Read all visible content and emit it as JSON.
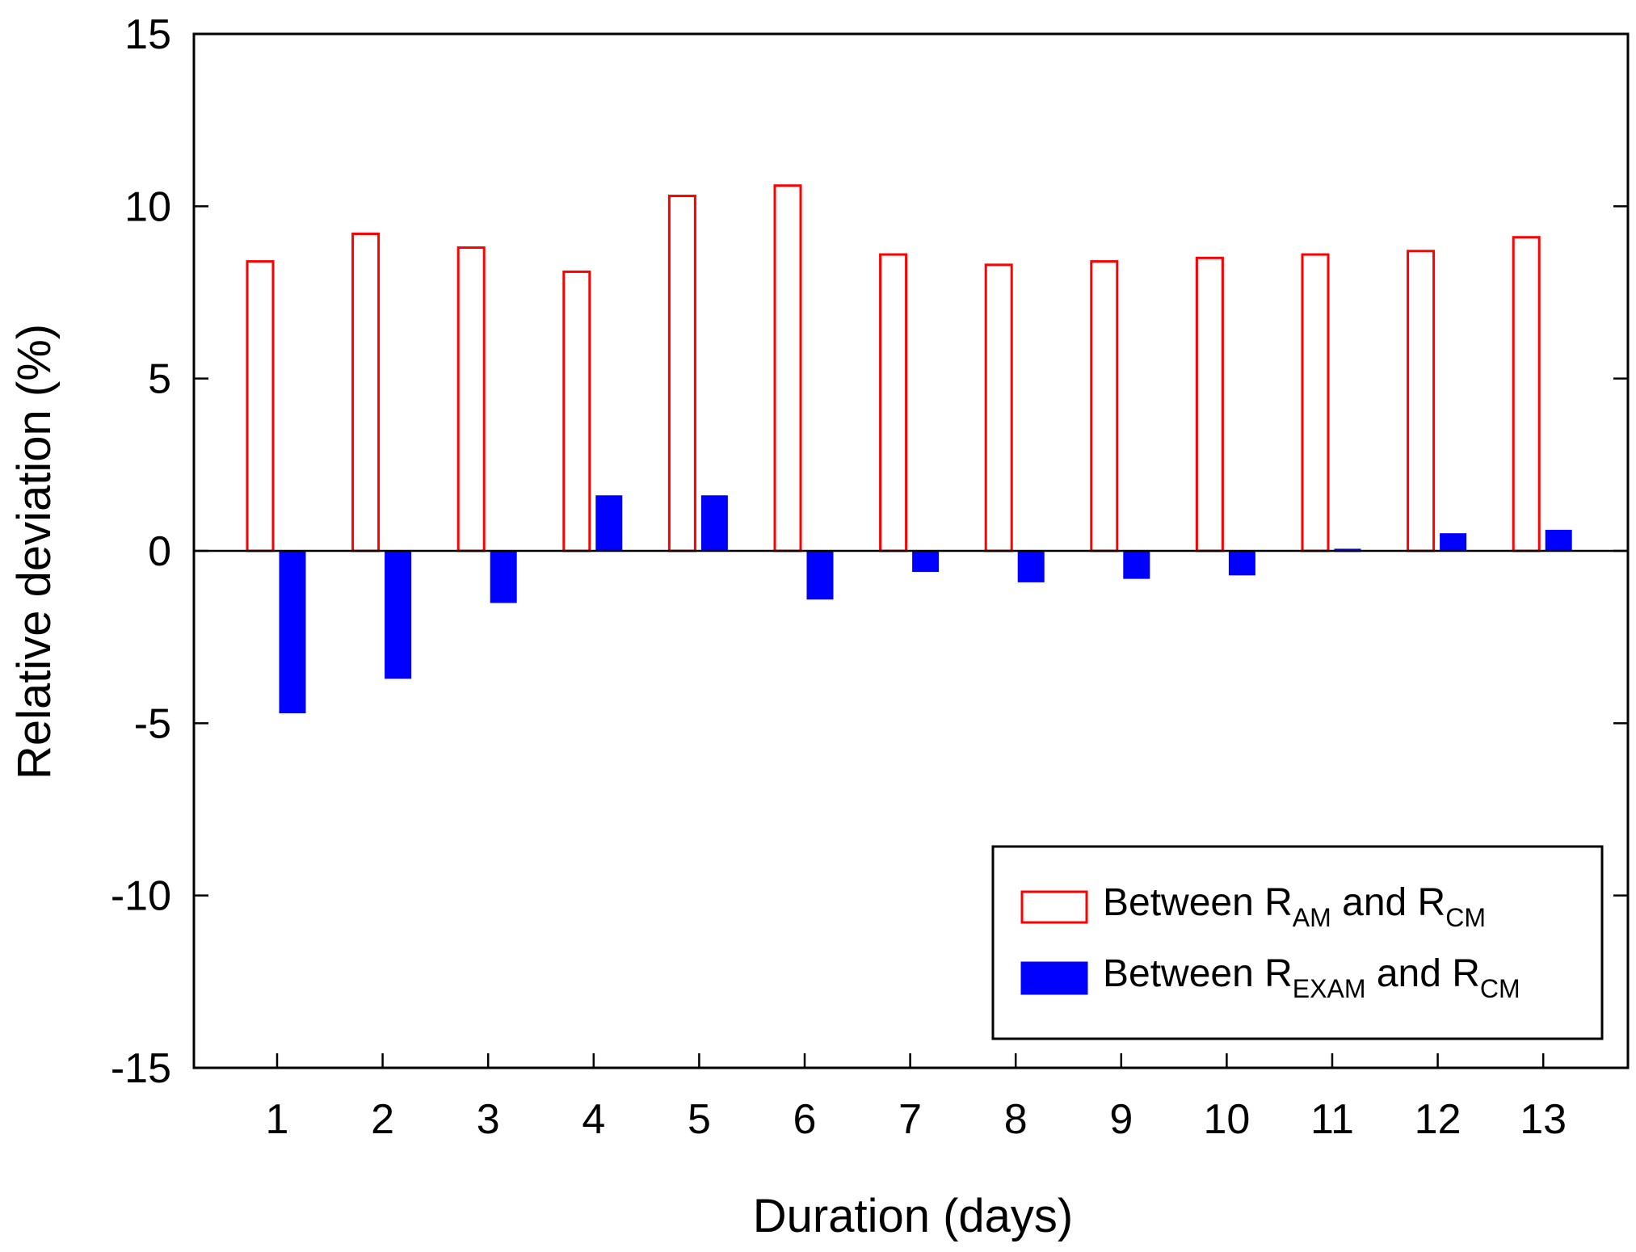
{
  "chart_data": {
    "type": "bar",
    "title": "",
    "xlabel": "Duration (days)",
    "ylabel": "Relative deviation (%)",
    "ylim": [
      -15,
      15
    ],
    "yticks": [
      -15,
      -10,
      -5,
      0,
      5,
      10,
      15
    ],
    "categories": [
      "1",
      "2",
      "3",
      "4",
      "5",
      "6",
      "7",
      "8",
      "9",
      "10",
      "11",
      "12",
      "13"
    ],
    "series": [
      {
        "name": "Between R_AM and R_CM",
        "style": "hollow",
        "color": "#ff0000",
        "values": [
          8.4,
          9.2,
          8.8,
          8.1,
          10.3,
          10.6,
          8.6,
          8.3,
          8.4,
          8.5,
          8.6,
          8.7,
          9.1
        ]
      },
      {
        "name": "Between R_EXAM and R_CM",
        "style": "filled",
        "color": "#0000ff",
        "values": [
          -4.7,
          -3.7,
          -1.5,
          1.6,
          1.6,
          -1.4,
          -0.6,
          -0.9,
          -0.8,
          -0.7,
          0.05,
          0.5,
          0.6
        ]
      }
    ],
    "legend": {
      "position": "bottom-right",
      "entries": [
        {
          "prefix": "Between R",
          "sub1": "AM",
          "middle": " and R",
          "sub2": "CM"
        },
        {
          "prefix": "Between R",
          "sub1": "EXAM",
          "middle": " and R",
          "sub2": "CM"
        }
      ]
    }
  }
}
